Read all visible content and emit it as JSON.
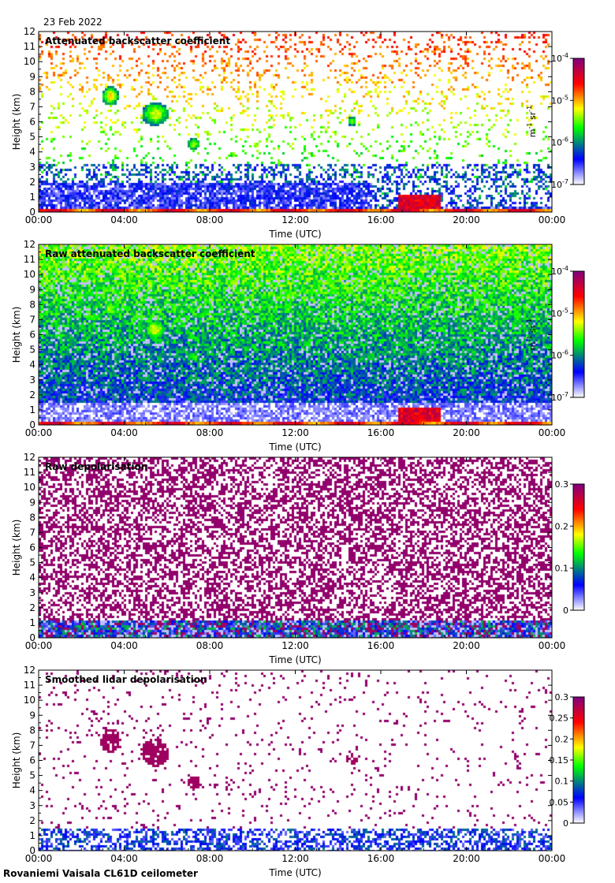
{
  "header": {
    "date": "23 Feb 2022"
  },
  "footer": {
    "instrument": "Rovaniemi Vaisala CL61D ceilometer"
  },
  "chart_data": [
    {
      "type": "heatmap",
      "title": "Attenuated backscatter coefficient",
      "xlabel": "Time (UTC)",
      "ylabel": "Height (km)",
      "x_ticks": [
        "00:00",
        "04:00",
        "08:00",
        "12:00",
        "16:00",
        "20:00",
        "00:00"
      ],
      "y_ticks": [
        0,
        1,
        2,
        3,
        4,
        5,
        6,
        7,
        8,
        9,
        10,
        11,
        12
      ],
      "xlim_hours": [
        0,
        24
      ],
      "ylim_km": [
        0,
        12
      ],
      "colorbar": {
        "scale": "log",
        "ticks": [
          "10-7",
          "10-6",
          "10-5",
          "10-4"
        ],
        "tick_base": "10",
        "tick_exps": [
          "-7",
          "-6",
          "-5",
          "-4"
        ],
        "unit_label": "m-1 sr-1",
        "unit_a": "m",
        "unit_a_exp": "-1",
        "unit_b": "sr",
        "unit_b_exp": "-1",
        "colors": [
          "#ffffff",
          "#0000ff",
          "#00ff00",
          "#ffff00",
          "#ff0000",
          "#7f007f"
        ]
      },
      "features": [
        {
          "label": "near-surface layer",
          "t": [
            0,
            24
          ],
          "h": [
            0,
            0.3
          ],
          "level": "high"
        },
        {
          "label": "boundary layer noise",
          "t": [
            0,
            15.5
          ],
          "h": [
            0.4,
            2
          ],
          "level": "low"
        },
        {
          "label": "cloud 03:00",
          "t": [
            2.8,
            4.0
          ],
          "h": [
            6.8,
            8.6
          ],
          "level": "mid-high"
        },
        {
          "label": "cloud 05:00",
          "t": [
            4.7,
            6.3
          ],
          "h": [
            5.8,
            8.0
          ],
          "level": "mid"
        },
        {
          "label": "cloud 07:00",
          "t": [
            6.8,
            7.6
          ],
          "h": [
            4.1,
            5.4
          ],
          "level": "mid"
        },
        {
          "label": "cloud 14:30",
          "t": [
            14.2,
            14.8
          ],
          "h": [
            5.8,
            6.6
          ],
          "level": "mid"
        },
        {
          "label": "low cloud 17:00-18:30",
          "t": [
            16.8,
            18.7
          ],
          "h": [
            0,
            1.2
          ],
          "level": "high"
        }
      ]
    },
    {
      "type": "heatmap",
      "title": "Raw attenuated backscatter coefficient",
      "xlabel": "Time (UTC)",
      "ylabel": "Height (km)",
      "x_ticks": [
        "00:00",
        "04:00",
        "08:00",
        "12:00",
        "16:00",
        "20:00",
        "00:00"
      ],
      "y_ticks": [
        0,
        1,
        2,
        3,
        4,
        5,
        6,
        7,
        8,
        9,
        10,
        11,
        12
      ],
      "xlim_hours": [
        0,
        24
      ],
      "ylim_km": [
        0,
        12
      ],
      "colorbar": {
        "scale": "log",
        "ticks": [
          "10-7",
          "10-6",
          "10-5",
          "10-4"
        ],
        "tick_base": "10",
        "tick_exps": [
          "-7",
          "-6",
          "-5",
          "-4"
        ],
        "unit_label": "m-1 sr-1",
        "unit_a": "m",
        "unit_a_exp": "-1",
        "unit_b": "sr",
        "unit_b_exp": "-1",
        "colors": [
          "#ffffff",
          "#0000ff",
          "#00ff00",
          "#ffff00",
          "#ff0000",
          "#7f007f"
        ]
      },
      "features": [
        {
          "label": "noise increasing with height",
          "t": [
            0,
            24
          ],
          "h": [
            2,
            12
          ],
          "level": "blue-green"
        },
        {
          "label": "near-surface layer",
          "t": [
            0,
            24
          ],
          "h": [
            0,
            0.3
          ],
          "level": "high"
        },
        {
          "label": "low cloud 17:00-18:30",
          "t": [
            16.8,
            18.7
          ],
          "h": [
            0,
            1.2
          ],
          "level": "high"
        }
      ]
    },
    {
      "type": "heatmap",
      "title": "Raw depolarisation",
      "xlabel": "Time (UTC)",
      "ylabel": "Height (km)",
      "x_ticks": [
        "00:00",
        "04:00",
        "08:00",
        "12:00",
        "16:00",
        "20:00",
        "00:00"
      ],
      "y_ticks": [
        0,
        1,
        2,
        3,
        4,
        5,
        6,
        7,
        8,
        9,
        10,
        11,
        12
      ],
      "xlim_hours": [
        0,
        24
      ],
      "ylim_km": [
        0,
        12
      ],
      "colorbar": {
        "scale": "linear",
        "ticks": [
          "0",
          "0.1",
          "0.2",
          "0.3"
        ],
        "colors": [
          "#ffffff",
          "#0000ff",
          "#00ff00",
          "#ffff00",
          "#ff0000",
          "#7f007f"
        ]
      },
      "features": [
        {
          "label": "noisy saturated depolarisation",
          "t": [
            0,
            24
          ],
          "h": [
            1.5,
            12
          ],
          "level": "purple"
        },
        {
          "label": "low-level structure",
          "t": [
            0,
            24
          ],
          "h": [
            0,
            1.2
          ],
          "level": "low"
        }
      ]
    },
    {
      "type": "heatmap",
      "title": "Smoothed lidar depolarisation",
      "xlabel": "Time (UTC)",
      "ylabel": "Height (km)",
      "x_ticks": [
        "00:00",
        "04:00",
        "08:00",
        "12:00",
        "16:00",
        "20:00",
        "00:00"
      ],
      "y_ticks": [
        0,
        1,
        2,
        3,
        4,
        5,
        6,
        7,
        8,
        9,
        10,
        11,
        12
      ],
      "xlim_hours": [
        0,
        24
      ],
      "ylim_km": [
        0,
        12
      ],
      "colorbar": {
        "scale": "linear",
        "ticks": [
          "0",
          "0.05",
          "0.1",
          "0.15",
          "0.2",
          "0.25",
          "0.3"
        ],
        "colors": [
          "#ffffff",
          "#0000ff",
          "#00ff00",
          "#ffff00",
          "#ff0000",
          "#7f007f"
        ]
      },
      "features": [
        {
          "label": "ice cloud 03:00",
          "t": [
            2.8,
            4.0
          ],
          "h": [
            6.3,
            8.6
          ],
          "level": "high"
        },
        {
          "label": "ice cloud 05:00",
          "t": [
            4.5,
            6.3
          ],
          "h": [
            5.8,
            8.2
          ],
          "level": "high"
        },
        {
          "label": "ice cloud 07:00",
          "t": [
            6.8,
            7.6
          ],
          "h": [
            4.1,
            5.2
          ],
          "level": "high"
        },
        {
          "label": "ice cloud 14:30",
          "t": [
            14.3,
            14.9
          ],
          "h": [
            5.9,
            6.4
          ],
          "level": "high"
        },
        {
          "label": "boundary layer",
          "t": [
            0,
            24
          ],
          "h": [
            0,
            1.8
          ],
          "level": "low"
        }
      ]
    }
  ]
}
